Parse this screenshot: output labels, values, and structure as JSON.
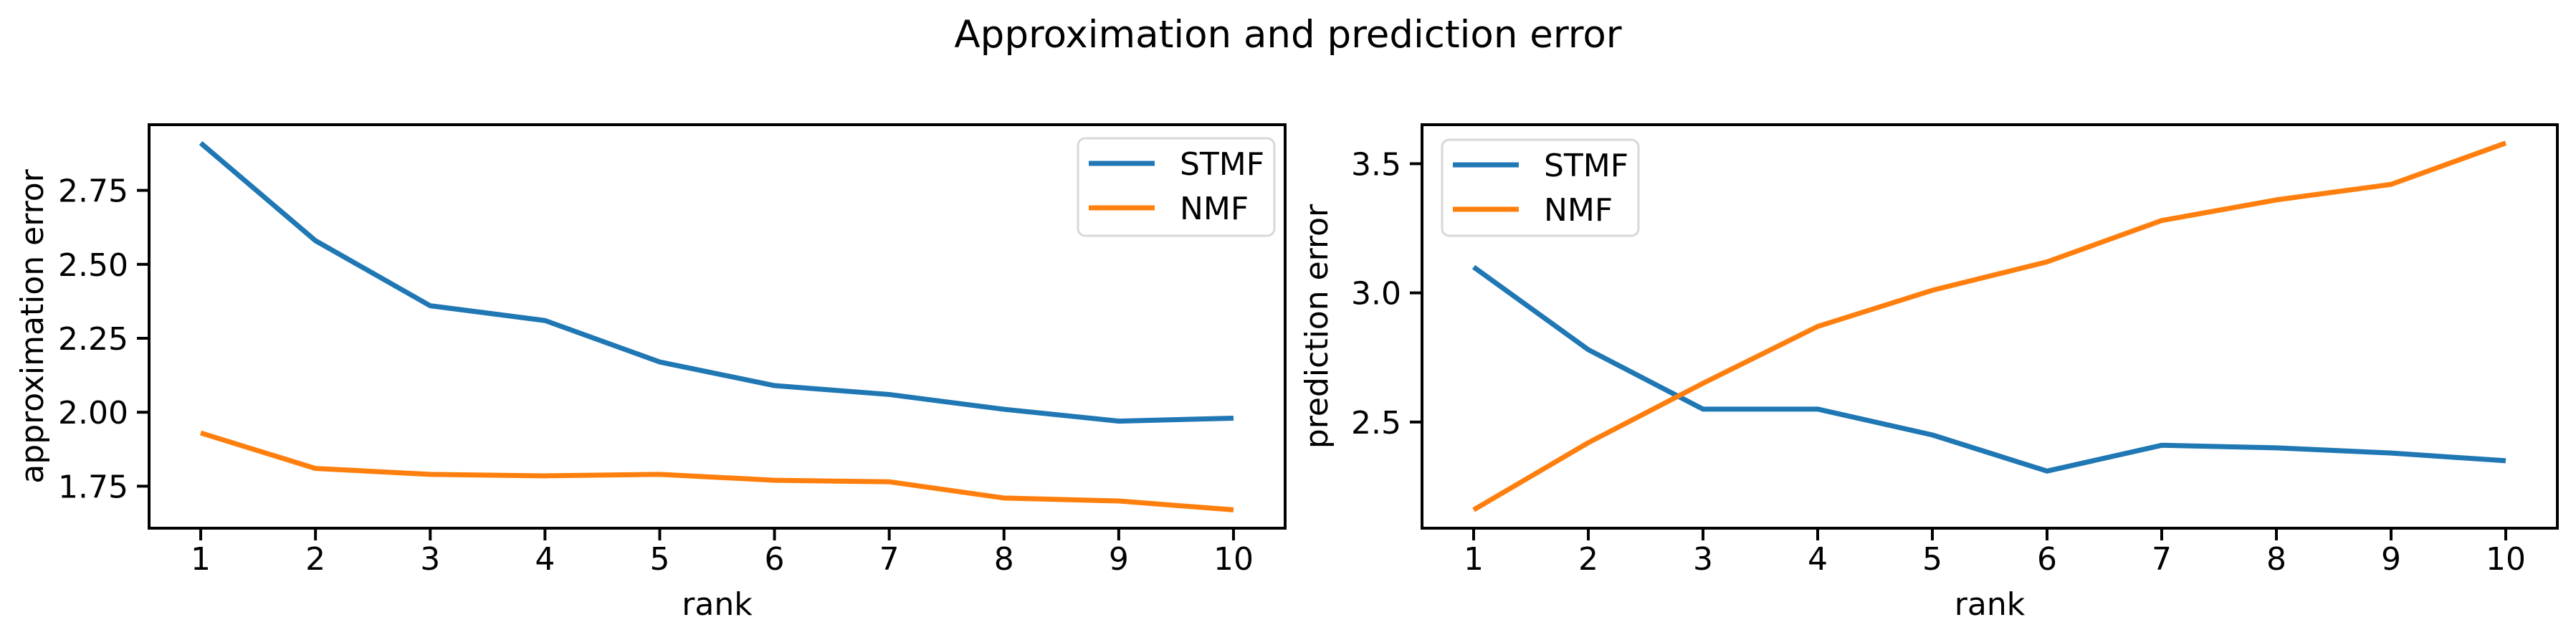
{
  "figure": {
    "title": "Approximation and prediction error",
    "background": "#ffffff"
  },
  "colors": {
    "STMF": "#1f77b4",
    "NMF": "#ff7f0e",
    "axis": "#000000",
    "text": "#000000",
    "legend_border": "#d8d8d8",
    "legend_background": "#ffffff"
  },
  "chart_data": [
    {
      "type": "line",
      "ylabel": "approximation error",
      "xlabel": "rank",
      "x": [
        1,
        2,
        3,
        4,
        5,
        6,
        7,
        8,
        9,
        10
      ],
      "series": [
        {
          "name": "STMF",
          "values": [
            2.91,
            2.58,
            2.36,
            2.31,
            2.17,
            2.09,
            2.06,
            2.01,
            1.97,
            1.98
          ]
        },
        {
          "name": "NMF",
          "values": [
            1.93,
            1.81,
            1.79,
            1.785,
            1.79,
            1.77,
            1.765,
            1.71,
            1.7,
            1.67
          ]
        }
      ],
      "xlim": [
        0.55,
        10.45
      ],
      "ylim": [
        1.608,
        2.972
      ],
      "xtick_labels": [
        "1",
        "2",
        "3",
        "4",
        "5",
        "6",
        "7",
        "8",
        "9",
        "10"
      ],
      "yticks": [
        1.75,
        2.0,
        2.25,
        2.5,
        2.75
      ],
      "ytick_labels": [
        "1.75",
        "2.00",
        "2.25",
        "2.50",
        "2.75"
      ],
      "grid": false,
      "legend": {
        "position": "upper right",
        "entries": [
          "STMF",
          "NMF"
        ]
      }
    },
    {
      "type": "line",
      "ylabel": "prediction error",
      "xlabel": "rank",
      "x": [
        1,
        2,
        3,
        4,
        5,
        6,
        7,
        8,
        9,
        10
      ],
      "series": [
        {
          "name": "STMF",
          "values": [
            3.1,
            2.78,
            2.55,
            2.55,
            2.45,
            2.31,
            2.41,
            2.4,
            2.38,
            2.35
          ]
        },
        {
          "name": "NMF",
          "values": [
            2.16,
            2.42,
            2.65,
            2.87,
            3.01,
            3.12,
            3.28,
            3.36,
            3.42,
            3.58
          ]
        }
      ],
      "xlim": [
        0.55,
        10.45
      ],
      "ylim": [
        2.089,
        3.651
      ],
      "xtick_labels": [
        "1",
        "2",
        "3",
        "4",
        "5",
        "6",
        "7",
        "8",
        "9",
        "10"
      ],
      "yticks": [
        2.5,
        3.0,
        3.5
      ],
      "ytick_labels": [
        "2.5",
        "3.0",
        "3.5"
      ],
      "grid": false,
      "legend": {
        "position": "upper left",
        "entries": [
          "STMF",
          "NMF"
        ]
      }
    }
  ]
}
